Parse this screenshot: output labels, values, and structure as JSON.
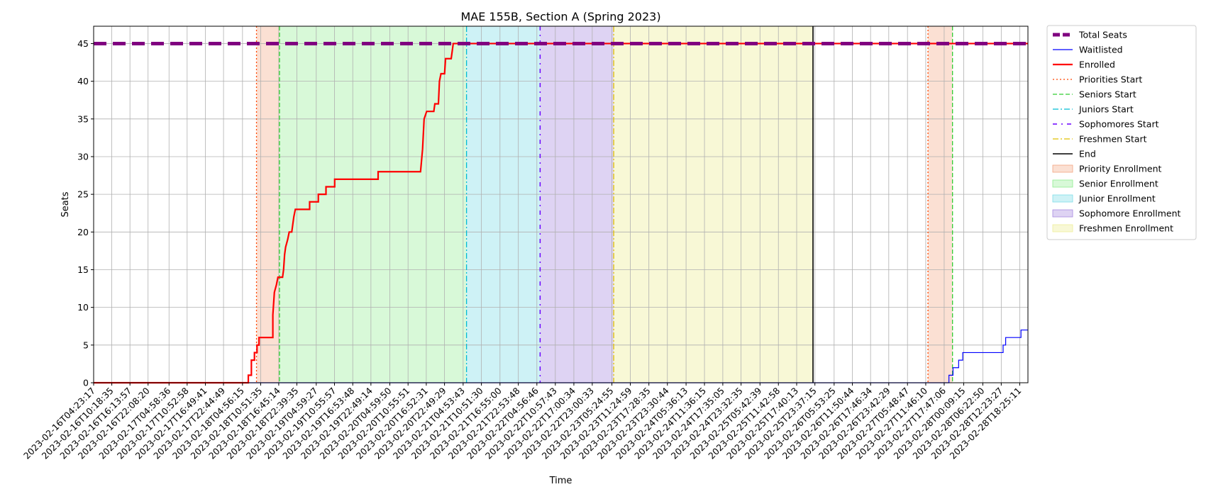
{
  "chart_data": {
    "type": "line",
    "title": "MAE 155B, Section A (Spring 2023)",
    "xlabel": "Time",
    "ylabel": "Seats",
    "ylim": [
      0,
      47.3
    ],
    "yticks": [
      0,
      5,
      10,
      15,
      20,
      25,
      30,
      35,
      40,
      45
    ],
    "grid": true,
    "legend_position": "outside-right-top",
    "x_range": [
      "2023-02-16T04:23:17",
      "2023-02-28T21:06:00"
    ],
    "xticks": [
      "2023-02-16T04:23:17",
      "2023-02-16T10:18:35",
      "2023-02-16T16:13:57",
      "2023-02-16T22:08:20",
      "2023-02-17T04:58:36",
      "2023-02-17T10:52:58",
      "2023-02-17T16:49:41",
      "2023-02-17T22:44:49",
      "2023-02-18T04:56:15",
      "2023-02-18T10:51:35",
      "2023-02-18T16:45:14",
      "2023-02-18T22:39:35",
      "2023-02-19T04:59:27",
      "2023-02-19T10:55:57",
      "2023-02-19T16:53:48",
      "2023-02-19T22:49:14",
      "2023-02-20T04:59:50",
      "2023-02-20T10:55:51",
      "2023-02-20T16:52:31",
      "2023-02-20T22:49:29",
      "2023-02-21T04:53:43",
      "2023-02-21T10:51:30",
      "2023-02-21T16:55:00",
      "2023-02-21T22:53:48",
      "2023-02-22T04:56:46",
      "2023-02-22T10:57:43",
      "2023-02-22T17:00:34",
      "2023-02-22T23:00:33",
      "2023-02-23T05:24:55",
      "2023-02-23T11:24:59",
      "2023-02-23T17:28:35",
      "2023-02-23T23:30:44",
      "2023-02-24T05:36:13",
      "2023-02-24T11:36:15",
      "2023-02-24T17:35:05",
      "2023-02-24T23:32:35",
      "2023-02-25T05:42:39",
      "2023-02-25T11:42:58",
      "2023-02-25T17:40:13",
      "2023-02-25T23:37:15",
      "2023-02-26T05:53:25",
      "2023-02-26T11:50:44",
      "2023-02-26T17:46:34",
      "2023-02-26T23:42:29",
      "2023-02-27T05:48:47",
      "2023-02-27T11:46:10",
      "2023-02-27T17:47:06",
      "2023-02-28T00:09:15",
      "2023-02-28T06:22:50",
      "2023-02-28T12:23:27",
      "2023-02-28T18:25:11"
    ],
    "series": [
      {
        "name": "Total Seats",
        "color": "#800080",
        "style": "dashed-thick",
        "points": [
          [
            "2023-02-16T04:23:17",
            45
          ],
          [
            "2023-02-28T21:06:00",
            45
          ]
        ]
      },
      {
        "name": "Waitlisted",
        "color": "#0000ff",
        "style": "solid-thin",
        "points": [
          [
            "2023-02-16T04:23:17",
            0
          ],
          [
            "2023-02-27T19:20:00",
            0
          ],
          [
            "2023-02-27T19:20:00",
            1
          ],
          [
            "2023-02-27T20:40:00",
            1
          ],
          [
            "2023-02-27T20:40:00",
            2
          ],
          [
            "2023-02-27T22:30:00",
            2
          ],
          [
            "2023-02-27T22:30:00",
            3
          ],
          [
            "2023-02-27T23:50:00",
            3
          ],
          [
            "2023-02-27T23:50:00",
            4
          ],
          [
            "2023-02-28T13:00:00",
            4
          ],
          [
            "2023-02-28T13:00:00",
            5
          ],
          [
            "2023-02-28T13:50:00",
            5
          ],
          [
            "2023-02-28T13:50:00",
            6
          ],
          [
            "2023-02-28T18:50:00",
            6
          ],
          [
            "2023-02-28T18:50:00",
            7
          ],
          [
            "2023-02-28T21:06:00",
            7
          ]
        ]
      },
      {
        "name": "Enrolled",
        "color": "#ff0000",
        "style": "solid-thick",
        "points": [
          [
            "2023-02-16T04:23:17",
            0
          ],
          [
            "2023-02-18T06:50:00",
            0
          ],
          [
            "2023-02-18T06:50:00",
            1
          ],
          [
            "2023-02-18T07:50:00",
            1
          ],
          [
            "2023-02-18T07:50:00",
            3
          ],
          [
            "2023-02-18T08:50:00",
            3
          ],
          [
            "2023-02-18T08:50:00",
            4
          ],
          [
            "2023-02-18T09:40:00",
            4
          ],
          [
            "2023-02-18T09:40:00",
            5
          ],
          [
            "2023-02-18T10:20:00",
            5
          ],
          [
            "2023-02-18T10:20:00",
            6
          ],
          [
            "2023-02-18T14:50:00",
            6
          ],
          [
            "2023-02-18T14:50:00",
            9
          ],
          [
            "2023-02-18T15:20:00",
            12
          ],
          [
            "2023-02-18T16:00:00",
            13
          ],
          [
            "2023-02-18T16:30:00",
            14
          ],
          [
            "2023-02-18T18:00:00",
            14
          ],
          [
            "2023-02-18T18:20:00",
            15
          ],
          [
            "2023-02-18T18:40:00",
            17
          ],
          [
            "2023-02-18T19:00:00",
            18
          ],
          [
            "2023-02-18T19:40:00",
            19
          ],
          [
            "2023-02-18T20:10:00",
            20
          ],
          [
            "2023-02-18T21:00:00",
            20
          ],
          [
            "2023-02-18T21:40:00",
            22
          ],
          [
            "2023-02-18T22:10:00",
            23
          ],
          [
            "2023-02-19T02:50:00",
            23
          ],
          [
            "2023-02-19T02:50:00",
            24
          ],
          [
            "2023-02-19T05:40:00",
            24
          ],
          [
            "2023-02-19T05:40:00",
            25
          ],
          [
            "2023-02-19T08:10:00",
            25
          ],
          [
            "2023-02-19T08:10:00",
            26
          ],
          [
            "2023-02-19T11:00:00",
            26
          ],
          [
            "2023-02-19T11:00:00",
            27
          ],
          [
            "2023-02-20T01:10:00",
            27
          ],
          [
            "2023-02-20T01:10:00",
            28
          ],
          [
            "2023-02-20T15:00:00",
            28
          ],
          [
            "2023-02-20T15:40:00",
            31
          ],
          [
            "2023-02-20T16:10:00",
            35
          ],
          [
            "2023-02-20T17:00:00",
            36
          ],
          [
            "2023-02-20T19:20:00",
            36
          ],
          [
            "2023-02-20T19:40:00",
            37
          ],
          [
            "2023-02-20T20:50:00",
            37
          ],
          [
            "2023-02-20T21:10:00",
            40
          ],
          [
            "2023-02-20T21:40:00",
            41
          ],
          [
            "2023-02-20T22:50:00",
            41
          ],
          [
            "2023-02-20T23:10:00",
            43
          ],
          [
            "2023-02-21T01:00:00",
            43
          ],
          [
            "2023-02-21T01:40:00",
            45
          ],
          [
            "2023-02-28T21:06:00",
            45
          ]
        ]
      }
    ],
    "vlines": [
      {
        "name": "Priorities Start",
        "color": "#ff4500",
        "style": "dotted",
        "x": [
          "2023-02-18T09:30:00",
          "2023-02-27T12:30:00"
        ]
      },
      {
        "name": "Seniors Start",
        "color": "#32cd32",
        "style": "dashed",
        "x": [
          "2023-02-18T17:00:00",
          "2023-02-27T20:30:00"
        ]
      },
      {
        "name": "Juniors Start",
        "color": "#00bcd4",
        "style": "dashdot",
        "x": [
          "2023-02-21T06:00:00"
        ]
      },
      {
        "name": "Sophomores Start",
        "color": "#6a00ff",
        "style": "dashdot-loose",
        "x": [
          "2023-02-22T06:00:00"
        ]
      },
      {
        "name": "Freshmen Start",
        "color": "#e0c000",
        "style": "dashdot",
        "x": [
          "2023-02-23T06:00:00"
        ]
      },
      {
        "name": "End",
        "color": "#000000",
        "style": "solid",
        "x": [
          "2023-02-25T23:00:00"
        ]
      }
    ],
    "regions": [
      {
        "name": "Priority Enrollment",
        "color": "#f4a582",
        "alpha": 0.35,
        "start": "2023-02-18T09:30:00",
        "end": "2023-02-18T17:00:00"
      },
      {
        "name": "Priority Enrollment",
        "color": "#f4a582",
        "alpha": 0.35,
        "start": "2023-02-27T12:30:00",
        "end": "2023-02-27T20:30:00"
      },
      {
        "name": "Senior Enrollment",
        "color": "#90ee90",
        "alpha": 0.35,
        "start": "2023-02-18T17:00:00",
        "end": "2023-02-21T06:00:00"
      },
      {
        "name": "Junior Enrollment",
        "color": "#7fdce8",
        "alpha": 0.38,
        "start": "2023-02-21T06:00:00",
        "end": "2023-02-22T06:00:00"
      },
      {
        "name": "Sophomore Enrollment",
        "color": "#a78be0",
        "alpha": 0.38,
        "start": "2023-02-22T06:00:00",
        "end": "2023-02-23T06:00:00"
      },
      {
        "name": "Freshmen Enrollment",
        "color": "#eeee99",
        "alpha": 0.4,
        "start": "2023-02-23T06:00:00",
        "end": "2023-02-25T23:00:00"
      }
    ],
    "legend": [
      {
        "label": "Total Seats",
        "kind": "line",
        "color": "#800080",
        "style": "dashed-thick"
      },
      {
        "label": "Waitlisted",
        "kind": "line",
        "color": "#0000ff",
        "style": "solid-thin"
      },
      {
        "label": "Enrolled",
        "kind": "line",
        "color": "#ff0000",
        "style": "solid-thick"
      },
      {
        "label": "Priorities Start",
        "kind": "line",
        "color": "#ff4500",
        "style": "dotted"
      },
      {
        "label": "Seniors Start",
        "kind": "line",
        "color": "#32cd32",
        "style": "dashed"
      },
      {
        "label": "Juniors Start",
        "kind": "line",
        "color": "#00bcd4",
        "style": "dashdot"
      },
      {
        "label": "Sophomores Start",
        "kind": "line",
        "color": "#6a00ff",
        "style": "dashdot-loose"
      },
      {
        "label": "Freshmen Start",
        "kind": "line",
        "color": "#e0c000",
        "style": "dashdot"
      },
      {
        "label": "End",
        "kind": "line",
        "color": "#000000",
        "style": "solid"
      },
      {
        "label": "Priority Enrollment",
        "kind": "patch",
        "color": "#f4a582",
        "alpha": 0.35
      },
      {
        "label": "Senior Enrollment",
        "kind": "patch",
        "color": "#90ee90",
        "alpha": 0.35
      },
      {
        "label": "Junior Enrollment",
        "kind": "patch",
        "color": "#7fdce8",
        "alpha": 0.38
      },
      {
        "label": "Sophomore Enrollment",
        "kind": "patch",
        "color": "#a78be0",
        "alpha": 0.38
      },
      {
        "label": "Freshmen Enrollment",
        "kind": "patch",
        "color": "#eeee99",
        "alpha": 0.4
      }
    ]
  }
}
